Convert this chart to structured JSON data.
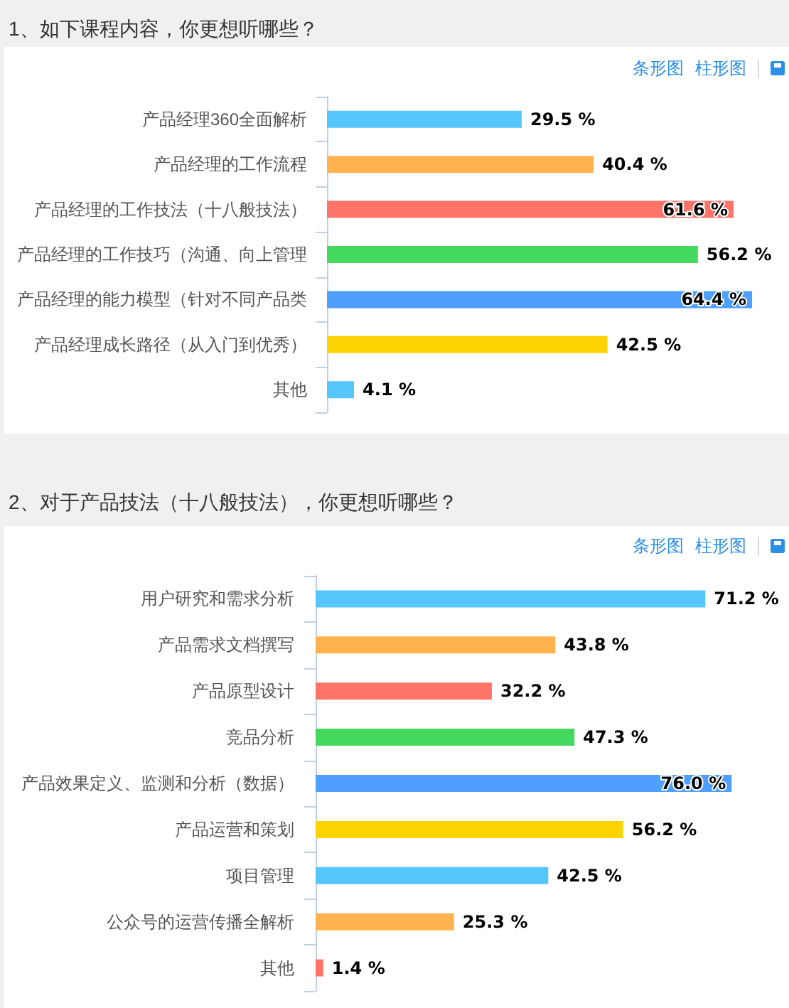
{
  "chart_data": [
    {
      "type": "bar",
      "orientation": "horizontal",
      "title": "1、如下课程内容，你更想听哪些？",
      "annotations": [
        "条形图",
        "柱形图"
      ],
      "tick_labels": "y",
      "categories": [
        "产品经理360全面解析",
        "产品经理的工作流程",
        "产品经理的工作技法（十八般技法）",
        "产品经理的工作技巧（沟通、向上管理",
        "产品经理的能力模型（针对不同产品类",
        "产品经理成长路径（从入门到优秀）",
        "其他"
      ],
      "values": [
        29.5,
        40.4,
        61.6,
        56.2,
        64.4,
        42.5,
        4.1
      ],
      "colors": [
        "#55c6fc",
        "#ffb24e",
        "#ff7468",
        "#44d95e",
        "#4e9ffe",
        "#ffd300",
        "#55c6fc"
      ],
      "value_labels": [
        "29.5 %",
        "40.4 %",
        "61.6 %",
        "56.2 %",
        "64.4 %",
        "42.5 %",
        "4.1 %"
      ]
    },
    {
      "type": "bar",
      "orientation": "horizontal",
      "title": "2、对于产品技法（十八般技法），你更想听哪些？",
      "annotations": [
        "条形图",
        "柱形图"
      ],
      "tick_labels": "y",
      "categories": [
        "用户研究和需求分析",
        "产品需求文档撰写",
        "产品原型设计",
        "竞品分析",
        "产品效果定义、监测和分析（数据）",
        "产品运营和策划",
        "项目管理",
        "公众号的运营传播全解析",
        "其他"
      ],
      "values": [
        71.2,
        43.8,
        32.2,
        47.3,
        76.0,
        56.2,
        42.5,
        25.3,
        1.4
      ],
      "colors": [
        "#55c6fc",
        "#ffb24e",
        "#ff7468",
        "#44d95e",
        "#4e9ffe",
        "#ffd300",
        "#55c6fc",
        "#ffb24e",
        "#ff7468"
      ],
      "value_labels": [
        "71.2 %",
        "43.8 %",
        "32.2 %",
        "47.3 %",
        "76.0 %",
        "56.2 %",
        "42.5 %",
        "25.3 %",
        "1.4 %"
      ]
    }
  ]
}
